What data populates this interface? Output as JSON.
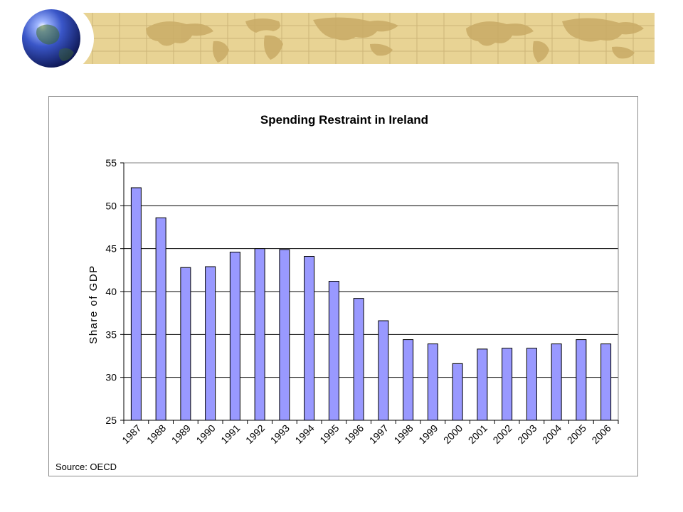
{
  "colors": {
    "banner_bg": "#e8d394",
    "banner_grid": "#cdb478",
    "banner_land": "#c9ab66",
    "bar_fill": "#9999ff",
    "bar_stroke": "#000000"
  },
  "icons": {
    "globe": "globe-icon"
  },
  "source_note": "Source: OECD",
  "chart_data": {
    "type": "bar",
    "title": "Spending Restraint in Ireland",
    "xlabel": "",
    "ylabel": "Share of GDP",
    "ylim": [
      25,
      55
    ],
    "yticks": [
      25,
      30,
      35,
      40,
      45,
      50,
      55
    ],
    "grid": true,
    "legend": "none",
    "categories": [
      "1987",
      "1988",
      "1989",
      "1990",
      "1991",
      "1992",
      "1993",
      "1994",
      "1995",
      "1996",
      "1997",
      "1998",
      "1999",
      "2000",
      "2001",
      "2002",
      "2003",
      "2004",
      "2005",
      "2006"
    ],
    "values": [
      52.1,
      48.6,
      42.8,
      42.9,
      44.6,
      45.0,
      44.9,
      44.1,
      41.2,
      39.2,
      36.6,
      34.4,
      33.9,
      31.6,
      33.3,
      33.4,
      33.4,
      33.9,
      34.4,
      33.9
    ]
  }
}
